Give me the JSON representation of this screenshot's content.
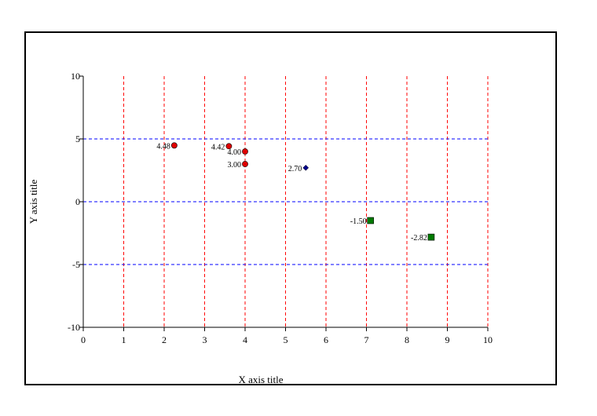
{
  "chart_data": {
    "type": "scatter",
    "title": "",
    "xlabel": "X axis title",
    "ylabel": "Y axis title",
    "xlim": [
      0,
      10
    ],
    "ylim": [
      -10,
      10
    ],
    "x_ticks": [
      0,
      1,
      2,
      3,
      4,
      5,
      6,
      7,
      8,
      9,
      10
    ],
    "y_ticks": [
      -10,
      -5,
      0,
      5,
      10
    ],
    "grid": true,
    "colors": {
      "vertical_grid": "#ff0000",
      "horizontal_grid": "#0000ff"
    },
    "series": [
      {
        "marker": "circle",
        "color": "#e00000",
        "points": [
          {
            "x": 2.25,
            "y": 4.48,
            "label": "4.48"
          },
          {
            "x": 3.6,
            "y": 4.42,
            "label": "4.42"
          },
          {
            "x": 4.0,
            "y": 4.0,
            "label": "4.00"
          },
          {
            "x": 4.0,
            "y": 3.0,
            "label": "3.00"
          }
        ]
      },
      {
        "marker": "diamond",
        "color": "#00008b",
        "points": [
          {
            "x": 5.5,
            "y": 2.7,
            "label": "2.70"
          }
        ]
      },
      {
        "marker": "square",
        "color": "#007a00",
        "points": [
          {
            "x": 7.1,
            "y": -1.5,
            "label": "-1.50"
          },
          {
            "x": 8.6,
            "y": -2.82,
            "label": "-2.82"
          }
        ]
      }
    ]
  }
}
